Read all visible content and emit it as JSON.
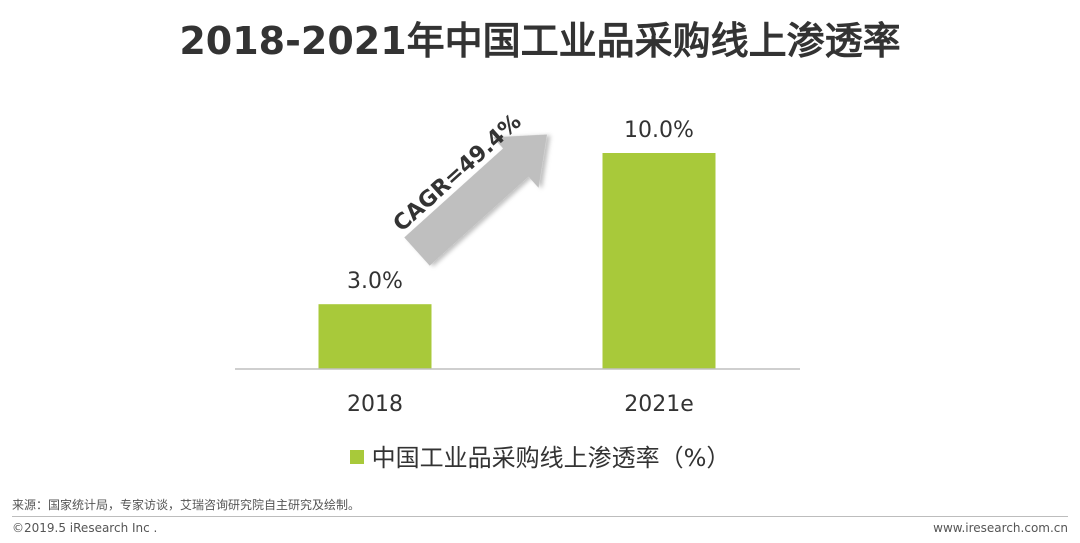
{
  "chart_data": {
    "type": "bar",
    "title": "2018-2021年中国工业品采购线上渗透率",
    "categories": [
      "2018",
      "2021e"
    ],
    "series": [
      {
        "name": "中国工业品采购线上渗透率（%）",
        "values": [
          3.0,
          10.0
        ]
      }
    ],
    "data_labels": [
      "3.0%",
      "10.0%"
    ],
    "ylim": [
      0,
      12
    ],
    "grid": false,
    "legend_position": "bottom",
    "annotation": "CAGR=49.4%",
    "bar_color": "#a8c93a",
    "arrow_color": "#bfbfbf"
  },
  "footer": {
    "source": "来源：国家统计局，专家访谈，艾瑞咨询研究院自主研究及绘制。",
    "copyright": "©2019.5 iResearch Inc .",
    "website": "www.iresearch.com.cn"
  }
}
